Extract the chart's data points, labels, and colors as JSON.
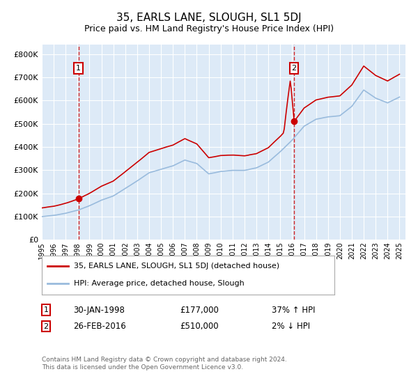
{
  "title": "35, EARLS LANE, SLOUGH, SL1 5DJ",
  "subtitle": "Price paid vs. HM Land Registry's House Price Index (HPI)",
  "ylim": [
    0,
    840000
  ],
  "yticks": [
    0,
    100000,
    200000,
    300000,
    400000,
    500000,
    600000,
    700000,
    800000
  ],
  "ytick_labels": [
    "£0",
    "£100K",
    "£200K",
    "£300K",
    "£400K",
    "£500K",
    "£600K",
    "£700K",
    "£800K"
  ],
  "plot_bg_color": "#ddeaf7",
  "grid_color": "#ffffff",
  "sale1_year": 1998.08,
  "sale1_price": 177000,
  "sale2_year": 2016.16,
  "sale2_price": 510000,
  "line_color_sale": "#cc0000",
  "line_color_hpi": "#99bbdd",
  "legend_sale_label": "35, EARLS LANE, SLOUGH, SL1 5DJ (detached house)",
  "legend_hpi_label": "HPI: Average price, detached house, Slough",
  "footer": "Contains HM Land Registry data © Crown copyright and database right 2024.\nThis data is licensed under the Open Government Licence v3.0.",
  "xmin": 1995,
  "xmax": 2025.5
}
